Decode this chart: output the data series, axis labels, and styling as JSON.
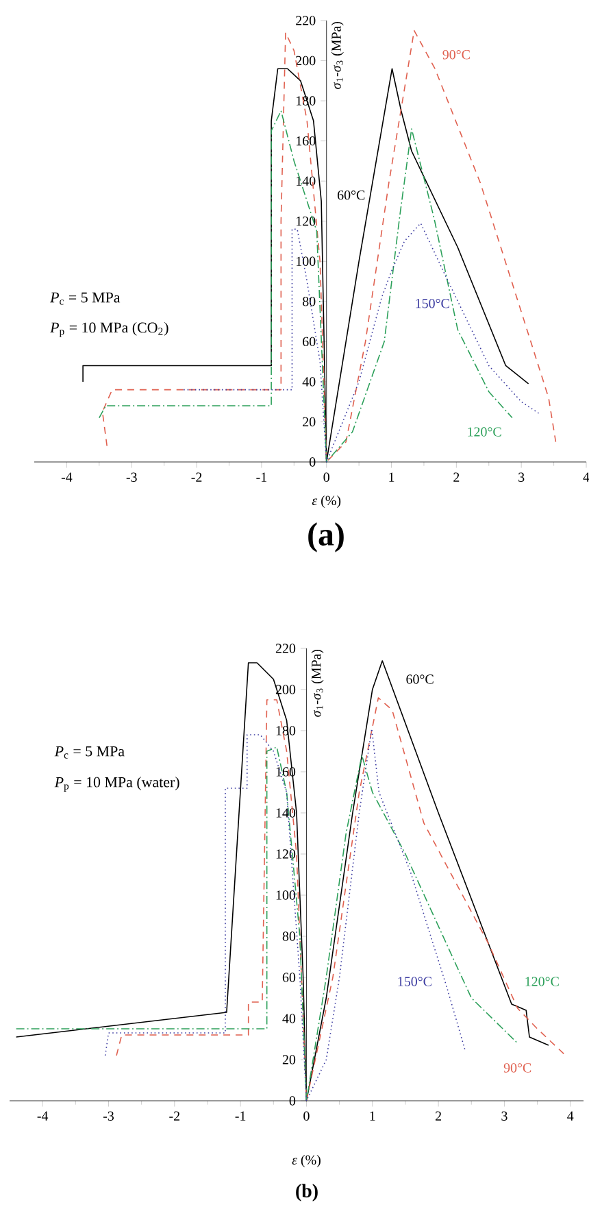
{
  "chart_data": [
    {
      "type": "line",
      "title": "(a)",
      "xlabel": "*ε* (%)",
      "ylabel": "*σ*$_{1}$-*σ*$_{3}$ (MPa)",
      "annotations": [
        "*P*$_{c}$ = 5 MPa",
        "*P*$_{p}$ = 10 MPa (CO$_{2}$)"
      ],
      "xlim": [
        -4.5,
        4.0
      ],
      "ylim": [
        0,
        220
      ],
      "xticks": [
        -4,
        -3,
        -2,
        -1,
        0,
        1,
        2,
        3,
        4
      ],
      "yticks": [
        0,
        20,
        40,
        60,
        80,
        100,
        120,
        140,
        160,
        180,
        200,
        220
      ],
      "grid": false,
      "marker": "none",
      "series": [
        {
          "name": "60°C",
          "color": "#000000",
          "line_style": "solid",
          "x": [
            -3.75,
            -3.75,
            -0.85,
            -0.85,
            -0.75,
            -0.6,
            -0.4,
            -0.2,
            -0.08,
            0,
            0.5,
            1.01,
            1.15,
            1.31,
            2.02,
            2.76,
            3.11
          ],
          "values": [
            40,
            48,
            48,
            170,
            196,
            196,
            190,
            170,
            130,
            0,
            100,
            196,
            175,
            155,
            107,
            48,
            39
          ]
        },
        {
          "name": "90°C",
          "color": "#e0604f",
          "line_style": "dashed",
          "x": [
            -3.38,
            -3.45,
            -3.3,
            -0.7,
            -0.7,
            -0.63,
            -0.5,
            -0.3,
            -0.1,
            0,
            0.3,
            0.6,
            0.96,
            1.35,
            1.67,
            2.37,
            3.42,
            3.53
          ],
          "values": [
            8,
            25,
            36,
            36,
            120,
            214,
            205,
            170,
            100,
            0,
            10,
            60,
            139,
            215,
            196,
            139,
            32,
            10
          ]
        },
        {
          "name": "120°C",
          "color": "#2ca05a",
          "line_style": "dashdot",
          "x": [
            -3.5,
            -3.4,
            -0.85,
            -0.85,
            -0.7,
            -0.5,
            -0.3,
            -0.15,
            0,
            0.4,
            0.89,
            1.13,
            1.31,
            1.66,
            2.02,
            2.5,
            2.86
          ],
          "values": [
            22,
            28,
            28,
            165,
            175,
            150,
            130,
            115,
            0,
            15,
            60,
            123,
            166,
            121,
            66,
            35,
            22
          ]
        },
        {
          "name": "150°C",
          "color": "#3a3aa0",
          "line_style": "dotted",
          "x": [
            -2.2,
            -0.53,
            -0.53,
            -0.45,
            -0.3,
            -0.1,
            0,
            0.5,
            0.85,
            1.0,
            1.2,
            1.45,
            1.8,
            2.5,
            3.0,
            3.28
          ],
          "values": [
            36,
            36,
            116,
            116,
            90,
            50,
            0,
            40,
            82,
            95,
            110,
            119,
            95,
            48,
            30,
            24
          ]
        }
      ]
    },
    {
      "type": "line",
      "title": "(b)",
      "xlabel": "*ε* (%)",
      "ylabel": "*σ*$_{1}$-*σ*$_{3}$ (MPa)",
      "annotations": [
        "*P*$_{c}$ = 5 MPa",
        "*P*$_{p}$ = 10 MPa (water)"
      ],
      "xlim": [
        -4.5,
        4.2
      ],
      "ylim": [
        0,
        220
      ],
      "xticks": [
        -4,
        -3,
        -2,
        -1,
        0,
        1,
        2,
        3,
        4
      ],
      "yticks": [
        0,
        20,
        40,
        60,
        80,
        100,
        120,
        140,
        160,
        180,
        200,
        220
      ],
      "grid": false,
      "marker": "none",
      "series": [
        {
          "name": "60°C",
          "color": "#000000",
          "line_style": "solid",
          "x": [
            -4.4,
            -1.21,
            -0.88,
            -0.75,
            -0.5,
            -0.3,
            -0.15,
            -0.05,
            0,
            0.3,
            0.7,
            1.0,
            1.15,
            2.0,
            3.11,
            3.33,
            3.38,
            3.67
          ],
          "values": [
            31,
            43,
            213,
            213,
            205,
            185,
            140,
            60,
            0,
            50,
            140,
            200,
            214,
            140,
            47,
            44,
            31,
            27
          ]
        },
        {
          "name": "90°C",
          "color": "#e0604f",
          "line_style": "dashed",
          "x": [
            -2.88,
            -2.8,
            -0.88,
            -0.88,
            -0.67,
            -0.6,
            -0.45,
            -0.3,
            -0.15,
            0,
            0.4,
            0.8,
            1.09,
            1.3,
            1.78,
            2.75,
            3.2,
            3.5,
            3.93
          ],
          "values": [
            22,
            32,
            32,
            48,
            48,
            195,
            195,
            170,
            120,
            0,
            60,
            150,
            196,
            190,
            135,
            77,
            45,
            35,
            22
          ]
        },
        {
          "name": "120°C",
          "color": "#2ca05a",
          "line_style": "dashdot",
          "x": [
            -4.4,
            -0.6,
            -0.6,
            -0.45,
            -0.3,
            -0.1,
            0,
            0.3,
            0.6,
            0.84,
            1.0,
            1.5,
            2.27,
            2.5,
            3.2
          ],
          "values": [
            35,
            35,
            170,
            172,
            150,
            80,
            0,
            60,
            130,
            168,
            150,
            120,
            66,
            50,
            28
          ]
        },
        {
          "name": "150°C",
          "color": "#3a3aa0",
          "line_style": "dotted",
          "x": [
            -3.05,
            -3.0,
            -1.23,
            -1.23,
            -0.9,
            -0.9,
            -0.7,
            -0.5,
            -0.3,
            -0.1,
            0,
            0.3,
            0.5,
            0.8,
            0.99,
            1.1,
            1.58,
            2.13,
            2.41
          ],
          "values": [
            22,
            33,
            33,
            152,
            152,
            178,
            178,
            170,
            150,
            60,
            0,
            20,
            60,
            140,
            181,
            150,
            111,
            55,
            24
          ]
        }
      ]
    }
  ]
}
